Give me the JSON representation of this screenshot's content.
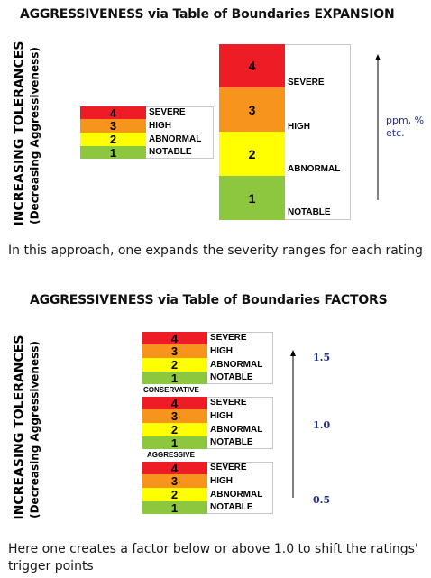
{
  "section1": {
    "title": "AGGRESSIVENESS via Table of Boundaries EXPANSION",
    "ylabel_main": "INCREASING TOLERANCES",
    "ylabel_sub": "(Decreasing Aggressiveness)",
    "small_table": [
      {
        "rating": "4",
        "label": "SEVERE"
      },
      {
        "rating": "3",
        "label": "HIGH"
      },
      {
        "rating": "2",
        "label": "ABNORMAL"
      },
      {
        "rating": "1",
        "label": "NOTABLE"
      }
    ],
    "big_table": [
      {
        "rating": "4",
        "label": "SEVERE"
      },
      {
        "rating": "3",
        "label": "HIGH"
      },
      {
        "rating": "2",
        "label": "ABNORMAL"
      },
      {
        "rating": "1",
        "label": "NOTABLE"
      }
    ],
    "units_line1": "ppm, %",
    "units_line2": "etc.",
    "caption": "In this approach, one expands the severity ranges for each rating"
  },
  "section2": {
    "title": "AGGRESSIVENESS via Table of Boundaries FACTORS",
    "ylabel_main": "INCREASING TOLERANCES",
    "ylabel_sub": "(Decreasing Aggressiveness)",
    "groups": [
      {
        "rows": [
          {
            "rating": "4",
            "label": "SEVERE"
          },
          {
            "rating": "3",
            "label": "HIGH"
          },
          {
            "rating": "2",
            "label": "ABNORMAL"
          },
          {
            "rating": "1",
            "label": "NOTABLE"
          }
        ],
        "after": "CONSERVATIVE"
      },
      {
        "rows": [
          {
            "rating": "4",
            "label": "SEVERE"
          },
          {
            "rating": "3",
            "label": "HIGH"
          },
          {
            "rating": "2",
            "label": "ABNORMAL"
          },
          {
            "rating": "1",
            "label": "NOTABLE"
          }
        ],
        "after": "AGGRESSIVE"
      },
      {
        "rows": [
          {
            "rating": "4",
            "label": "SEVERE"
          },
          {
            "rating": "3",
            "label": "HIGH"
          },
          {
            "rating": "2",
            "label": "ABNORMAL"
          },
          {
            "rating": "1",
            "label": "NOTABLE"
          }
        ],
        "after": ""
      }
    ],
    "factors": [
      "1.5",
      "1.0",
      "0.5"
    ],
    "caption_line1": "Here one creates a factor below or above 1.0 to shift the ratings'",
    "caption_line2": "trigger points"
  },
  "colors": {
    "severe": "#ee1c25",
    "high": "#f7941d",
    "abnormal": "#ffff00",
    "notable": "#8dc63f",
    "factor_text": "#1f2f8a",
    "units_text": "#1f2f8a"
  }
}
